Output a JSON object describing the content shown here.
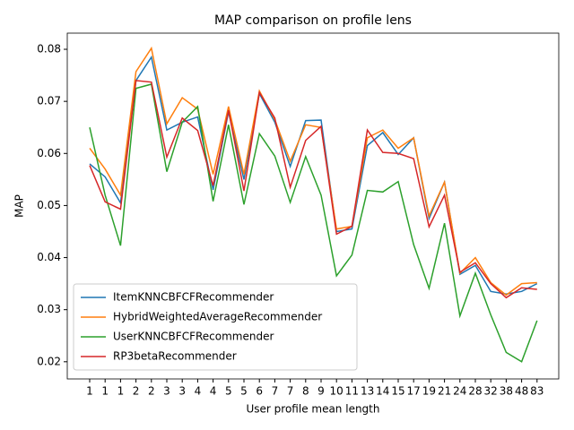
{
  "chart_data": {
    "type": "line",
    "title": "MAP comparison on profile lens",
    "x_label": "User profile mean length",
    "y_label": "MAP",
    "categories": [
      "1",
      "1",
      "1",
      "2",
      "2",
      "3",
      "3",
      "4",
      "4",
      "5",
      "5",
      "6",
      "7",
      "7",
      "8",
      "9",
      "10",
      "11",
      "13",
      "14",
      "15",
      "17",
      "19",
      "21",
      "24",
      "28",
      "32",
      "38",
      "48",
      "83"
    ],
    "series": [
      {
        "name": "ItemKNNCBFCFRecommender",
        "color": "#1f77b4",
        "values": [
          0.058,
          0.0555,
          0.0505,
          0.074,
          0.0785,
          0.0645,
          0.066,
          0.067,
          0.053,
          0.068,
          0.055,
          0.0715,
          0.066,
          0.0575,
          0.0663,
          0.0664,
          0.045,
          0.0455,
          0.0615,
          0.064,
          0.0598,
          0.063,
          0.0475,
          0.0545,
          0.0368,
          0.0385,
          0.0335,
          0.033,
          0.0335,
          0.035
        ]
      },
      {
        "name": "HybridWeightedAverageRecommender",
        "color": "#ff7f0e",
        "values": [
          0.061,
          0.057,
          0.052,
          0.0757,
          0.0802,
          0.0657,
          0.0707,
          0.0685,
          0.056,
          0.069,
          0.056,
          0.072,
          0.0665,
          0.0585,
          0.0655,
          0.065,
          0.0455,
          0.046,
          0.063,
          0.0645,
          0.061,
          0.063,
          0.048,
          0.0545,
          0.037,
          0.04,
          0.0352,
          0.0328,
          0.035,
          0.0352
        ]
      },
      {
        "name": "UserKNNCBFCFRecommender",
        "color": "#2ca02c",
        "values": [
          0.065,
          0.052,
          0.0423,
          0.0725,
          0.0733,
          0.0565,
          0.066,
          0.069,
          0.0508,
          0.0655,
          0.0502,
          0.0638,
          0.0595,
          0.0506,
          0.0594,
          0.052,
          0.0365,
          0.0405,
          0.0529,
          0.0526,
          0.0546,
          0.0425,
          0.0341,
          0.0466,
          0.0288,
          0.037,
          0.029,
          0.0218,
          0.02,
          0.0279
        ]
      },
      {
        "name": "RP3betaRecommender",
        "color": "#d62728",
        "values": [
          0.0577,
          0.0507,
          0.0493,
          0.074,
          0.0737,
          0.0593,
          0.0668,
          0.0644,
          0.0538,
          0.0683,
          0.0528,
          0.0717,
          0.0668,
          0.0535,
          0.0625,
          0.0652,
          0.0445,
          0.046,
          0.0645,
          0.0602,
          0.06,
          0.059,
          0.0459,
          0.052,
          0.0372,
          0.039,
          0.035,
          0.0323,
          0.0342,
          0.0339
        ]
      }
    ],
    "ylim": [
      0.0167,
      0.0831
    ],
    "yticks": [
      0.02,
      0.03,
      0.04,
      0.05,
      0.06,
      0.07,
      0.08
    ],
    "grid": false,
    "legend": "lower left"
  }
}
